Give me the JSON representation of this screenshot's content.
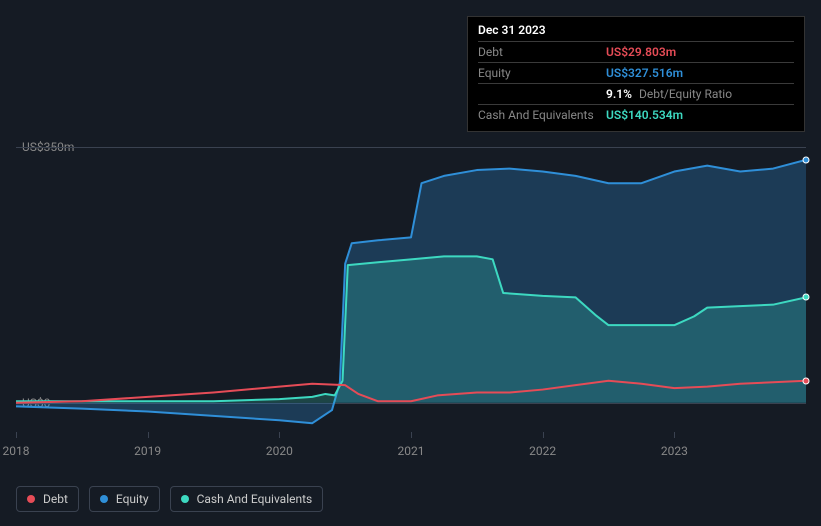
{
  "background_color": "#151b24",
  "tooltip": {
    "date": "Dec 31 2023",
    "rows": [
      {
        "label": "Debt",
        "value": "US$29.803m",
        "color": "#e64c57"
      },
      {
        "label": "Equity",
        "value": "US$327.516m",
        "color": "#2f8fd8"
      },
      {
        "label": "",
        "value": "9.1%",
        "extra": "Debt/Equity Ratio",
        "color": "#ffffff"
      },
      {
        "label": "Cash And Equivalents",
        "value": "US$140.534m",
        "color": "#3dd9c1"
      }
    ]
  },
  "chart": {
    "type": "area-line",
    "x_range": [
      2018,
      2024
    ],
    "y_range": [
      -40,
      370
    ],
    "y_ticks": [
      {
        "v": 0,
        "label": "US$0"
      },
      {
        "v": 350,
        "label": "US$350m"
      }
    ],
    "x_ticks": [
      2018,
      2019,
      2020,
      2021,
      2022,
      2023
    ],
    "grid_color": "#3a4250",
    "series": [
      {
        "name": "Equity",
        "color": "#2f8fd8",
        "fill": "rgba(47,143,216,0.28)",
        "stroke_width": 2,
        "end_marker": true,
        "points": [
          [
            2018.0,
            -5
          ],
          [
            2018.5,
            -8
          ],
          [
            2019.0,
            -12
          ],
          [
            2019.5,
            -18
          ],
          [
            2020.0,
            -24
          ],
          [
            2020.25,
            -28
          ],
          [
            2020.4,
            -10
          ],
          [
            2020.46,
            28
          ],
          [
            2020.5,
            190
          ],
          [
            2020.55,
            218
          ],
          [
            2020.75,
            222
          ],
          [
            2021.0,
            226
          ],
          [
            2021.08,
            300
          ],
          [
            2021.25,
            310
          ],
          [
            2021.5,
            318
          ],
          [
            2021.75,
            320
          ],
          [
            2022.0,
            316
          ],
          [
            2022.25,
            310
          ],
          [
            2022.5,
            300
          ],
          [
            2022.75,
            300
          ],
          [
            2023.0,
            316
          ],
          [
            2023.25,
            324
          ],
          [
            2023.5,
            316
          ],
          [
            2023.75,
            320
          ],
          [
            2024.0,
            332
          ]
        ]
      },
      {
        "name": "Cash And Equivalents",
        "color": "#3dd9c1",
        "fill": "rgba(61,217,193,0.22)",
        "stroke_width": 2,
        "end_marker": true,
        "points": [
          [
            2018.0,
            2
          ],
          [
            2019.0,
            2
          ],
          [
            2019.5,
            2
          ],
          [
            2020.0,
            5
          ],
          [
            2020.25,
            8
          ],
          [
            2020.35,
            12
          ],
          [
            2020.42,
            10
          ],
          [
            2020.48,
            30
          ],
          [
            2020.52,
            188
          ],
          [
            2020.75,
            192
          ],
          [
            2021.0,
            196
          ],
          [
            2021.25,
            200
          ],
          [
            2021.5,
            200
          ],
          [
            2021.62,
            196
          ],
          [
            2021.7,
            150
          ],
          [
            2022.0,
            146
          ],
          [
            2022.25,
            144
          ],
          [
            2022.4,
            120
          ],
          [
            2022.5,
            106
          ],
          [
            2022.75,
            106
          ],
          [
            2023.0,
            106
          ],
          [
            2023.15,
            118
          ],
          [
            2023.25,
            130
          ],
          [
            2023.5,
            132
          ],
          [
            2023.75,
            134
          ],
          [
            2024.0,
            144
          ]
        ]
      },
      {
        "name": "Debt",
        "color": "#e64c57",
        "fill": null,
        "stroke_width": 2,
        "end_marker": true,
        "points": [
          [
            2018.0,
            0
          ],
          [
            2018.5,
            2
          ],
          [
            2019.0,
            8
          ],
          [
            2019.5,
            14
          ],
          [
            2020.0,
            22
          ],
          [
            2020.25,
            26
          ],
          [
            2020.5,
            24
          ],
          [
            2020.6,
            12
          ],
          [
            2020.75,
            2
          ],
          [
            2021.0,
            2
          ],
          [
            2021.2,
            10
          ],
          [
            2021.5,
            14
          ],
          [
            2021.75,
            14
          ],
          [
            2022.0,
            18
          ],
          [
            2022.25,
            24
          ],
          [
            2022.5,
            30
          ],
          [
            2022.75,
            26
          ],
          [
            2023.0,
            20
          ],
          [
            2023.25,
            22
          ],
          [
            2023.5,
            26
          ],
          [
            2023.75,
            28
          ],
          [
            2024.0,
            30
          ]
        ]
      }
    ]
  },
  "legend": [
    {
      "label": "Debt",
      "color": "#e64c57"
    },
    {
      "label": "Equity",
      "color": "#2f8fd8"
    },
    {
      "label": "Cash And Equivalents",
      "color": "#3dd9c1"
    }
  ]
}
